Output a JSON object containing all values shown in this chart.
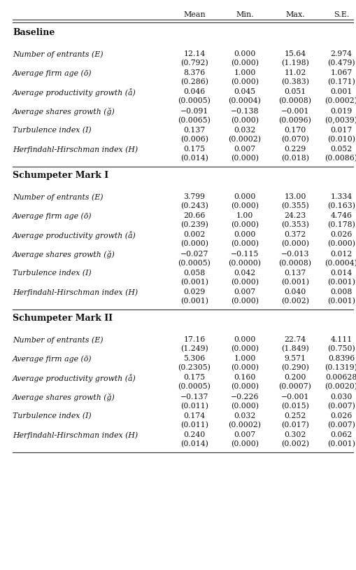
{
  "col_headers": [
    "Mean",
    "Min.",
    "Max.",
    "S.E."
  ],
  "sections": [
    {
      "label": "Baseline",
      "rows": [
        {
          "name": "Number of entrants (E)",
          "values": [
            "12.14",
            "0.000",
            "15.64",
            "2.974"
          ],
          "se": [
            "(0.792)",
            "(0.000)",
            "(1.198)",
            "(0.479)"
          ]
        },
        {
          "name": "Average firm age (ō)",
          "values": [
            "8.376",
            "1.000",
            "11.02",
            "1.067"
          ],
          "se": [
            "(0.286)",
            "(0.000)",
            "(0.383)",
            "(0.171)"
          ]
        },
        {
          "name": "Average productivity growth (å)",
          "values": [
            "0.046",
            "0.045",
            "0.051",
            "0.001"
          ],
          "se": [
            "(0.0005)",
            "(0.0004)",
            "(0.0008)",
            "(0.0002)"
          ]
        },
        {
          "name": "Average shares growth (ğ)",
          "values": [
            "−0.091",
            "−0.138",
            "−0.001",
            "0.019"
          ],
          "se": [
            "(0.0065)",
            "(0.000)",
            "(0.0096)",
            "(0,0039)"
          ]
        },
        {
          "name": "Turbulence index (I)",
          "values": [
            "0.137",
            "0.032",
            "0.170",
            "0.017"
          ],
          "se": [
            "(0.006)",
            "(0.0002)",
            "(0.070)",
            "(0.010)"
          ]
        },
        {
          "name": "Herfindahl-Hirschman index (H)",
          "values": [
            "0.175",
            "0.007",
            "0.229",
            "0.052"
          ],
          "se": [
            "(0.014)",
            "(0.000)",
            "(0.018)",
            "(0.0086)"
          ]
        }
      ]
    },
    {
      "label": "Schumpeter Mark I",
      "rows": [
        {
          "name": "Number of entrants (E)",
          "values": [
            "3.799",
            "0.000",
            "13.00",
            "1.334"
          ],
          "se": [
            "(0.243)",
            "(0.000)",
            "(0.355)",
            "(0.163)"
          ]
        },
        {
          "name": "Average firm age (ō)",
          "values": [
            "20.66",
            "1.00",
            "24.23",
            "4.746"
          ],
          "se": [
            "(0.239)",
            "(0.000)",
            "(0.353)",
            "(0.178)"
          ]
        },
        {
          "name": "Average productivity growth (å)",
          "values": [
            "0.002",
            "0.000",
            "0.372",
            "0.026"
          ],
          "se": [
            "(0.000)",
            "(0.000)",
            "(0.000)",
            "(0.000)"
          ]
        },
        {
          "name": "Average shares growth (ğ)",
          "values": [
            "−0.027",
            "−0.115",
            "−0.013",
            "0.012"
          ],
          "se": [
            "(0.0005)",
            "(0.0000)",
            "(0.0008)",
            "(0.0004)"
          ]
        },
        {
          "name": "Turbulence index (I)",
          "values": [
            "0.058",
            "0.042",
            "0.137",
            "0.014"
          ],
          "se": [
            "(0.001)",
            "(0.000)",
            "(0.001)",
            "(0.001)"
          ]
        },
        {
          "name": "Herfindahl-Hirschman index (H)",
          "values": [
            "0.029",
            "0.007",
            "0.040",
            "0.008"
          ],
          "se": [
            "(0.001)",
            "(0.000)",
            "(0.002)",
            "(0.001)"
          ]
        }
      ]
    },
    {
      "label": "Schumpeter Mark II",
      "rows": [
        {
          "name": "Number of entrants (E)",
          "values": [
            "17.16",
            "0.000",
            "22.74",
            "4.111"
          ],
          "se": [
            "(1.249)",
            "(0.000)",
            "(1.849)",
            "(0.750)"
          ]
        },
        {
          "name": "Average firm age (ō)",
          "values": [
            "5.306",
            "1.000",
            "9.571",
            "0.8396"
          ],
          "se": [
            "(0.2305)",
            "(0.000)",
            "(0.290)",
            "(0.1319)"
          ]
        },
        {
          "name": "Average productivity growth (å)",
          "values": [
            "0.175",
            "0.160",
            "0.200",
            "0.00628"
          ],
          "se": [
            "(0.0005)",
            "(0.000)",
            "(0.0007)",
            "(0.0020)"
          ]
        },
        {
          "name": "Average shares growth (ğ)",
          "values": [
            "−0.137",
            "−0.226",
            "−0.001",
            "0.030"
          ],
          "se": [
            "(0.011)",
            "(0.000)",
            "(0.015)",
            "(0.007)"
          ]
        },
        {
          "name": "Turbulence index (I)",
          "values": [
            "0.174",
            "0.032",
            "0.252",
            "0.026"
          ],
          "se": [
            "(0.011)",
            "(0.0002)",
            "(0.017)",
            "(0.007)"
          ]
        },
        {
          "name": "Herfindahl-Hirschman index (H)",
          "values": [
            "0.240",
            "0.007",
            "0.302",
            "0.062"
          ],
          "se": [
            "(0.014)",
            "(0.000)",
            "(0.002)",
            "(0.001)"
          ]
        }
      ]
    }
  ],
  "bg_color": "#ffffff",
  "line_color": "#333333",
  "text_color": "#111111"
}
